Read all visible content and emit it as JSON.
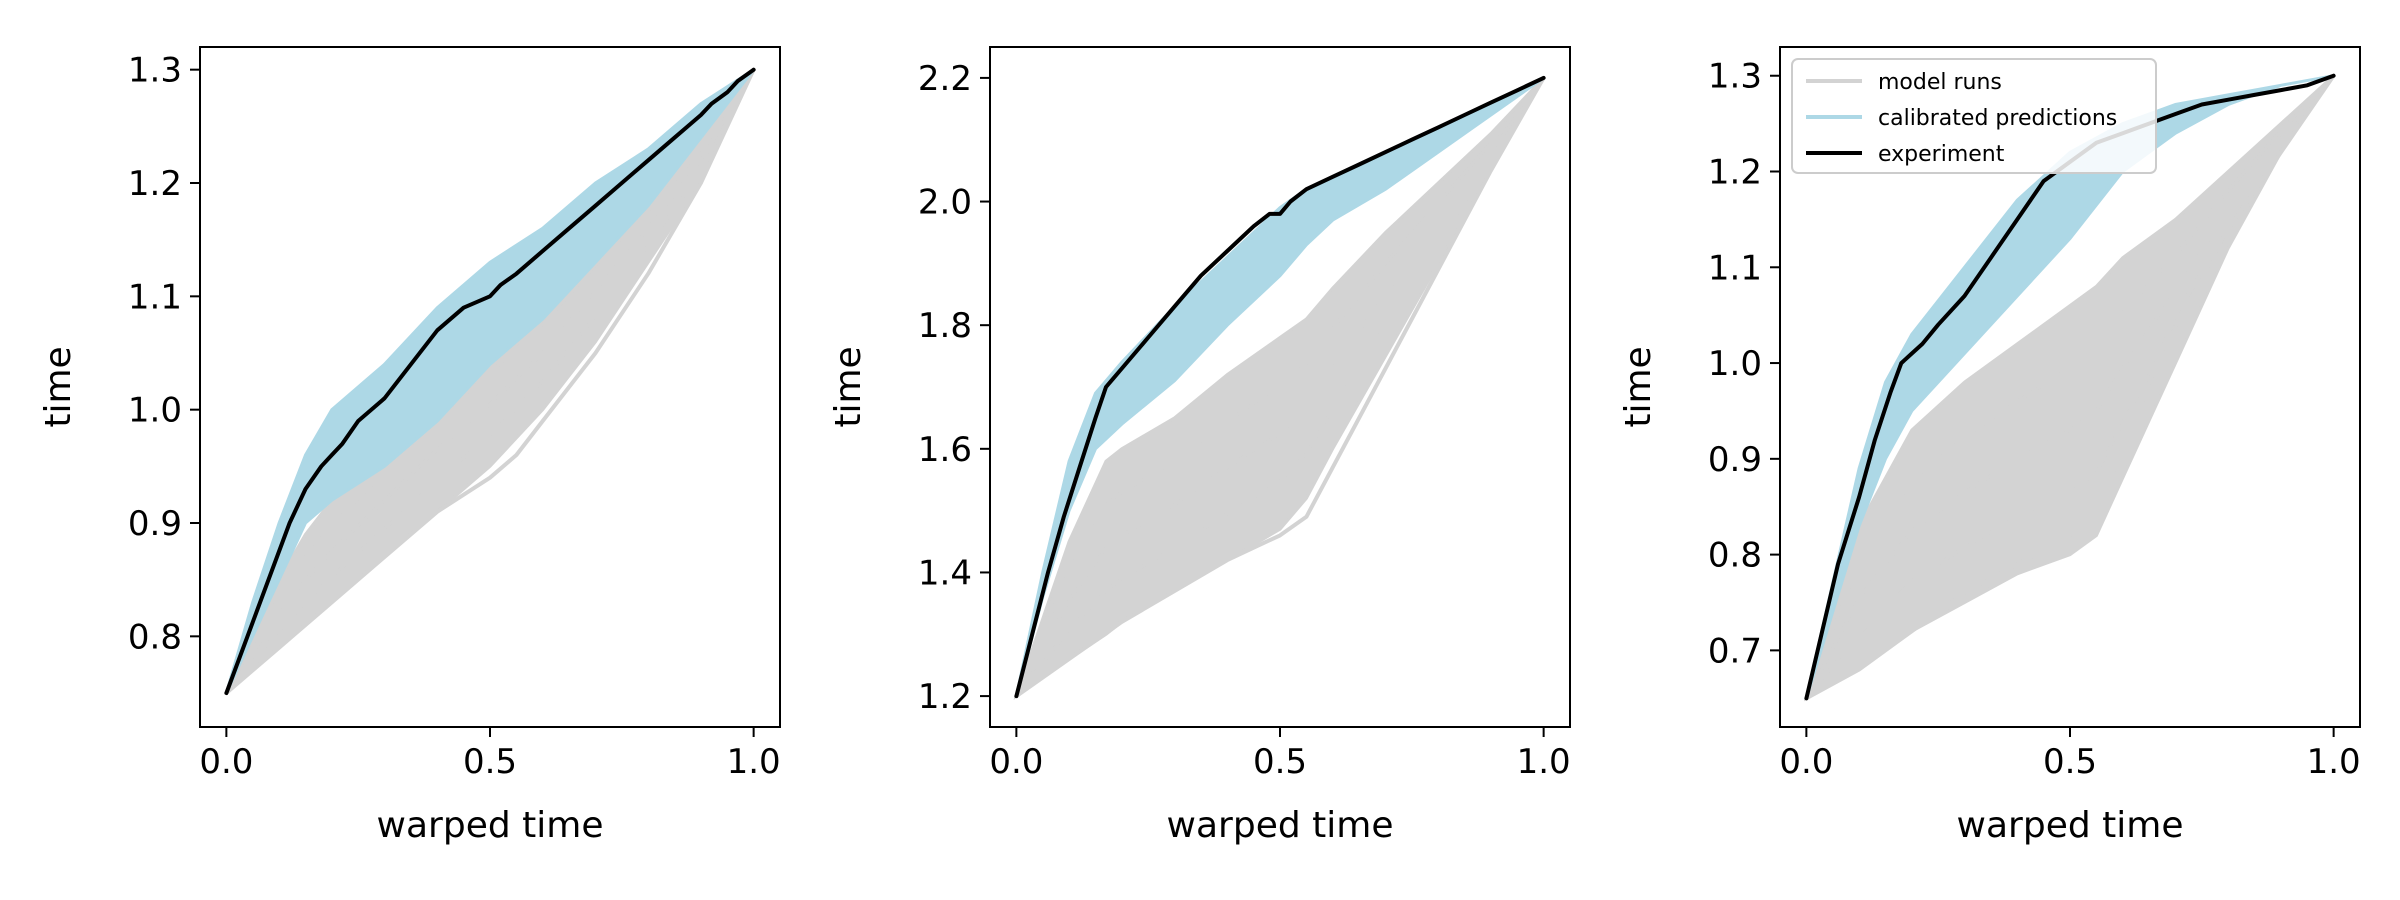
{
  "chart_data": [
    {
      "type": "line",
      "xlabel": "warped time",
      "ylabel": "time",
      "xlim": [
        -0.05,
        1.05
      ],
      "ylim": [
        0.72,
        1.32
      ],
      "xticks": [
        "0.0",
        "0.5",
        "1.0"
      ],
      "yticks": [
        "0.8",
        "0.9",
        "1.0",
        "1.1",
        "1.2",
        "1.3"
      ],
      "series": [
        {
          "role": "model_runs_band",
          "x": [
            0,
            0.05,
            0.1,
            0.15,
            0.2,
            0.3,
            0.4,
            0.5,
            0.6,
            0.7,
            0.8,
            0.9,
            0.95,
            1.0
          ],
          "upper": [
            0.75,
            0.8,
            0.85,
            0.89,
            0.92,
            0.97,
            1.02,
            1.06,
            1.1,
            1.15,
            1.19,
            1.24,
            1.27,
            1.3
          ],
          "lower": [
            0.75,
            0.77,
            0.79,
            0.81,
            0.83,
            0.87,
            0.91,
            0.95,
            1.0,
            1.06,
            1.13,
            1.2,
            1.25,
            1.3
          ]
        },
        {
          "role": "model_runs_outlier",
          "x": [
            0,
            0.1,
            0.2,
            0.3,
            0.4,
            0.5,
            0.55,
            0.6,
            0.7,
            0.8,
            0.9,
            1.0
          ],
          "y": [
            0.75,
            0.79,
            0.83,
            0.87,
            0.91,
            0.94,
            0.96,
            0.99,
            1.05,
            1.12,
            1.2,
            1.3
          ]
        },
        {
          "role": "calibrated_band",
          "x": [
            0,
            0.05,
            0.1,
            0.15,
            0.2,
            0.3,
            0.4,
            0.5,
            0.6,
            0.7,
            0.8,
            0.9,
            1.0
          ],
          "upper": [
            0.75,
            0.83,
            0.9,
            0.96,
            1.0,
            1.04,
            1.09,
            1.13,
            1.16,
            1.2,
            1.23,
            1.27,
            1.3
          ],
          "lower": [
            0.75,
            0.8,
            0.85,
            0.9,
            0.92,
            0.95,
            0.99,
            1.04,
            1.08,
            1.13,
            1.18,
            1.24,
            1.3
          ]
        },
        {
          "role": "experiment",
          "x": [
            0,
            0.04,
            0.08,
            0.12,
            0.15,
            0.18,
            0.2,
            0.22,
            0.25,
            0.3,
            0.35,
            0.4,
            0.45,
            0.5,
            0.52,
            0.55,
            0.6,
            0.65,
            0.7,
            0.75,
            0.8,
            0.85,
            0.9,
            0.92,
            0.95,
            0.97,
            1.0
          ],
          "y": [
            0.75,
            0.8,
            0.85,
            0.9,
            0.93,
            0.95,
            0.96,
            0.97,
            0.99,
            1.01,
            1.04,
            1.07,
            1.09,
            1.1,
            1.11,
            1.12,
            1.14,
            1.16,
            1.18,
            1.2,
            1.22,
            1.24,
            1.26,
            1.27,
            1.28,
            1.29,
            1.3
          ]
        }
      ]
    },
    {
      "type": "line",
      "xlabel": "warped time",
      "ylabel": "time",
      "xlim": [
        -0.05,
        1.05
      ],
      "ylim": [
        1.15,
        2.25
      ],
      "xticks": [
        "0.0",
        "0.5",
        "1.0"
      ],
      "yticks": [
        "1.2",
        "1.4",
        "1.6",
        "1.8",
        "2.0",
        "2.2"
      ],
      "series": [
        {
          "role": "model_runs_band",
          "x": [
            0,
            0.1,
            0.17,
            0.2,
            0.3,
            0.4,
            0.5,
            0.55,
            0.6,
            0.7,
            0.8,
            0.9,
            1.0
          ],
          "upper": [
            1.2,
            1.45,
            1.58,
            1.6,
            1.65,
            1.72,
            1.78,
            1.81,
            1.86,
            1.95,
            2.03,
            2.11,
            2.2
          ],
          "lower": [
            1.2,
            1.26,
            1.3,
            1.32,
            1.37,
            1.42,
            1.47,
            1.52,
            1.6,
            1.75,
            1.9,
            2.05,
            2.2
          ]
        },
        {
          "role": "model_runs_outlier",
          "x": [
            0,
            0.1,
            0.2,
            0.3,
            0.4,
            0.45,
            0.5,
            0.55,
            0.6,
            0.7,
            0.8,
            0.9,
            1.0
          ],
          "y": [
            1.2,
            1.26,
            1.32,
            1.37,
            1.42,
            1.44,
            1.46,
            1.49,
            1.57,
            1.73,
            1.89,
            2.05,
            2.2
          ]
        },
        {
          "role": "calibrated_band",
          "x": [
            0,
            0.05,
            0.1,
            0.15,
            0.2,
            0.3,
            0.4,
            0.5,
            0.55,
            0.6,
            0.7,
            0.8,
            0.9,
            1.0
          ],
          "upper": [
            1.2,
            1.4,
            1.58,
            1.69,
            1.74,
            1.83,
            1.91,
            1.99,
            2.02,
            2.04,
            2.08,
            2.12,
            2.16,
            2.2
          ],
          "lower": [
            1.2,
            1.36,
            1.5,
            1.6,
            1.64,
            1.71,
            1.8,
            1.88,
            1.93,
            1.97,
            2.02,
            2.08,
            2.14,
            2.2
          ]
        },
        {
          "role": "experiment",
          "x": [
            0,
            0.03,
            0.06,
            0.09,
            0.12,
            0.15,
            0.17,
            0.2,
            0.25,
            0.3,
            0.35,
            0.4,
            0.45,
            0.48,
            0.5,
            0.52,
            0.55,
            0.6,
            0.65,
            0.7,
            0.75,
            0.8,
            0.85,
            0.9,
            0.95,
            1.0
          ],
          "y": [
            1.2,
            1.3,
            1.4,
            1.49,
            1.57,
            1.65,
            1.7,
            1.73,
            1.78,
            1.83,
            1.88,
            1.92,
            1.96,
            1.98,
            1.98,
            2.0,
            2.02,
            2.04,
            2.06,
            2.08,
            2.1,
            2.12,
            2.14,
            2.16,
            2.18,
            2.2
          ]
        }
      ]
    },
    {
      "type": "line",
      "xlabel": "warped time",
      "ylabel": "time",
      "xlim": [
        -0.05,
        1.05
      ],
      "ylim": [
        0.62,
        1.33
      ],
      "xticks": [
        "0.0",
        "0.5",
        "1.0"
      ],
      "yticks": [
        "0.7",
        "0.8",
        "0.9",
        "1.0",
        "1.1",
        "1.2",
        "1.3"
      ],
      "legend": {
        "position": "upper-left",
        "entries": [
          {
            "label": "model runs",
            "color": "#d3d3d3"
          },
          {
            "label": "calibrated predictions",
            "color": "#add8e6"
          },
          {
            "label": "experiment",
            "color": "#000000"
          }
        ]
      },
      "series": [
        {
          "role": "model_runs_band",
          "x": [
            0,
            0.1,
            0.2,
            0.3,
            0.4,
            0.5,
            0.55,
            0.6,
            0.7,
            0.8,
            0.9,
            1.0
          ],
          "upper": [
            0.65,
            0.83,
            0.93,
            0.98,
            1.02,
            1.06,
            1.08,
            1.11,
            1.15,
            1.2,
            1.25,
            1.3
          ],
          "lower": [
            0.65,
            0.68,
            0.72,
            0.75,
            0.78,
            0.8,
            0.82,
            0.88,
            1.0,
            1.12,
            1.22,
            1.3
          ]
        },
        {
          "role": "model_runs_outlier",
          "x": [
            0,
            0.1,
            0.2,
            0.3,
            0.4,
            0.5,
            0.55,
            0.58,
            0.6,
            0.65,
            0.7,
            0.8,
            0.9,
            1.0
          ],
          "y": [
            0.65,
            0.68,
            0.72,
            0.76,
            0.79,
            0.82,
            0.85,
            0.87,
            0.9,
            0.98,
            1.05,
            1.14,
            1.22,
            1.3
          ]
        },
        {
          "role": "calibrated_band",
          "x": [
            0,
            0.05,
            0.1,
            0.15,
            0.2,
            0.3,
            0.4,
            0.5,
            0.6,
            0.7,
            0.8,
            0.9,
            1.0
          ],
          "upper": [
            0.65,
            0.77,
            0.89,
            0.98,
            1.03,
            1.1,
            1.17,
            1.22,
            1.25,
            1.27,
            1.28,
            1.29,
            1.3
          ],
          "lower": [
            0.65,
            0.74,
            0.83,
            0.9,
            0.95,
            1.01,
            1.07,
            1.13,
            1.2,
            1.24,
            1.27,
            1.29,
            1.3
          ]
        },
        {
          "role": "experiment",
          "x": [
            0,
            0.03,
            0.06,
            0.1,
            0.13,
            0.16,
            0.18,
            0.2,
            0.22,
            0.25,
            0.3,
            0.35,
            0.4,
            0.45,
            0.5,
            0.55,
            0.6,
            0.65,
            0.7,
            0.75,
            0.8,
            0.85,
            0.9,
            0.95,
            1.0
          ],
          "y": [
            0.65,
            0.72,
            0.79,
            0.86,
            0.92,
            0.97,
            1.0,
            1.01,
            1.02,
            1.04,
            1.07,
            1.11,
            1.15,
            1.19,
            1.21,
            1.23,
            1.24,
            1.25,
            1.26,
            1.27,
            1.275,
            1.28,
            1.285,
            1.29,
            1.3
          ]
        }
      ]
    }
  ]
}
